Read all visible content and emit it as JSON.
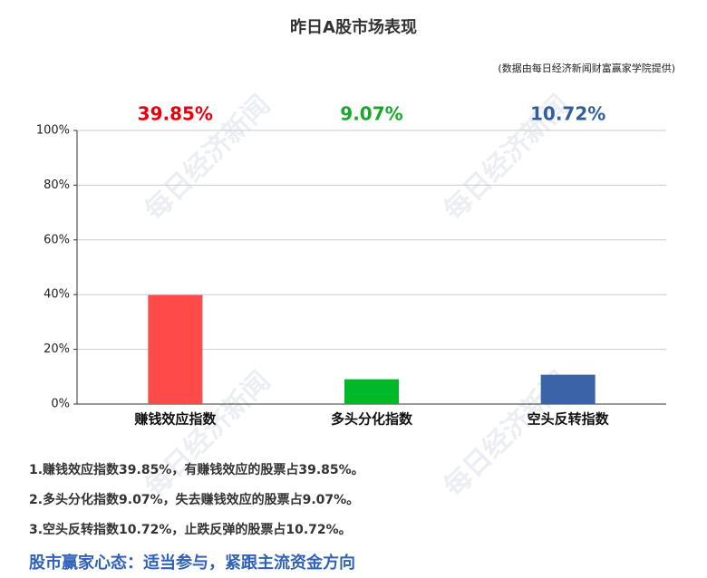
{
  "chart_data": {
    "type": "bar",
    "title": "昨日A股市场表现",
    "subtitle": "(数据由每日经济新闻财富赢家学院提供)",
    "categories": [
      "赚钱效应指数",
      "多头分化指数",
      "空头反转指数"
    ],
    "values": [
      39.85,
      9.07,
      10.72
    ],
    "value_labels": [
      "39.85%",
      "9.07%",
      "10.72%"
    ],
    "colors": [
      "#ff4a4a",
      "#00b82a",
      "#3a63a8"
    ],
    "label_colors": [
      "#e8000b",
      "#18a82c",
      "#2f5f9e"
    ],
    "ylim": [
      0,
      100
    ],
    "yticks": [
      {
        "value": 0,
        "label": "0%"
      },
      {
        "value": 20,
        "label": "20%"
      },
      {
        "value": 40,
        "label": "40%"
      },
      {
        "value": 60,
        "label": "60%"
      },
      {
        "value": 80,
        "label": "80%"
      },
      {
        "value": 100,
        "label": "100%"
      }
    ],
    "grid": true
  },
  "watermark": "每日经济新闻",
  "notes": [
    "1.赚钱效应指数39.85%，有赚钱效应的股票占39.85%。",
    "2.多头分化指数9.07%，失去赚钱效应的股票占9.07%。",
    "3.空头反转指数10.72%，止跌反弹的股票占10.72%。"
  ],
  "footer": "股市赢家心态：适当参与，紧跟主流资金方向"
}
